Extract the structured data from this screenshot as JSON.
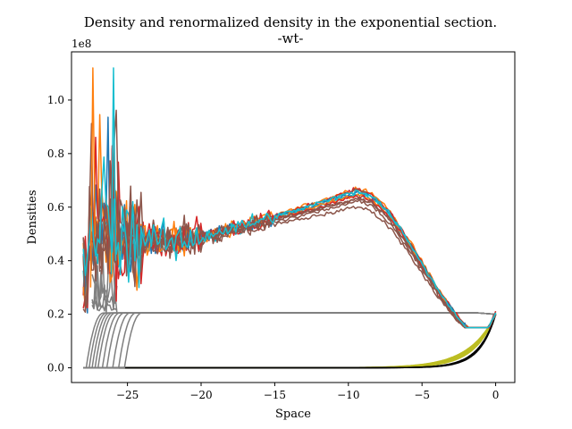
{
  "chart_data": {
    "type": "line",
    "title": "Density and renormalized density in the exponential section.",
    "subtitle": "-wt-",
    "xlabel": "Space",
    "ylabel": "Densities",
    "y_offset_label": "1e8",
    "y_scale": 100000000,
    "xlim": [
      -28.8,
      1.3
    ],
    "ylim": [
      -0.055,
      1.18
    ],
    "x_ticks": [
      -25,
      -20,
      -15,
      -10,
      -5,
      0
    ],
    "x_tick_labels": [
      "−25",
      "−20",
      "−15",
      "−10",
      "−5",
      "0"
    ],
    "y_ticks": [
      0.0,
      0.2,
      0.4,
      0.6,
      0.8,
      1.0
    ],
    "y_tick_labels": [
      "0.0",
      "0.2",
      "0.4",
      "0.6",
      "0.8",
      "1.0"
    ],
    "grid": false,
    "legend": "none",
    "noisy_densities": {
      "description_free": true,
      "count": 12,
      "x_start": -28.0,
      "x_end": 0.0,
      "peak_x": -9.5,
      "peak_values": [
        0.67,
        0.665,
        0.66,
        0.655,
        0.65,
        0.645,
        0.64,
        0.635,
        0.63,
        0.62,
        0.6,
        0.66
      ],
      "colors": [
        "#ff7f0e",
        "#d62728",
        "#8c564b",
        "#1f77b4",
        "#17becf",
        "#ff7f0e",
        "#d62728",
        "#8c564b",
        "#8c564b",
        "#8c564b",
        "#8c564b",
        "#17becf"
      ],
      "spike_max": 1.12,
      "end_value": 0.2
    },
    "renormalized_densities": {
      "count": 10,
      "color": "#7f7f7f",
      "plateau_value": 0.205,
      "rise_start_x": [
        -27.8,
        -27.6,
        -27.4,
        -27.2,
        -27.0,
        -26.7,
        -26.4,
        -26.0,
        -25.6,
        -25.2
      ],
      "rise_width": 1.2,
      "tail_x_start": -28.0,
      "tail_x_end": -26.0
    },
    "exponential_tails": [
      {
        "color": "#bcbd22",
        "count": 6,
        "x_start": -28.0,
        "x_end": 0.0,
        "end_value": 0.2,
        "decay": 0.55
      },
      {
        "color": "#000000",
        "count": 4,
        "x_start": -28.0,
        "x_end": 0.0,
        "end_value": 0.2,
        "decay": 0.85
      }
    ]
  }
}
